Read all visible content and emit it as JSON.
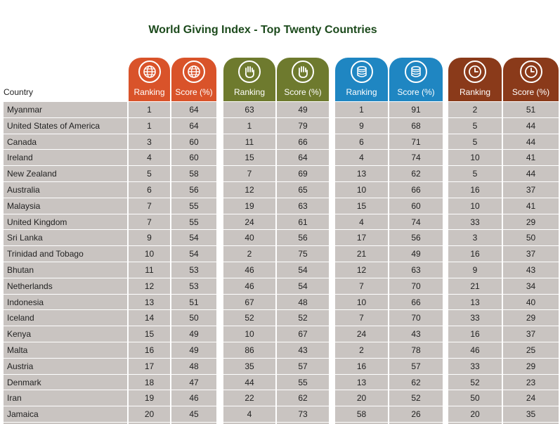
{
  "title": "World Giving Index - Top Twenty Countries",
  "country_header": "Country",
  "groups": [
    {
      "name": "helping-stranger",
      "icon": "globe-icon",
      "color": "#d9532a",
      "ranking_label": "Ranking",
      "score_label": "Score (%)"
    },
    {
      "name": "donating-money",
      "icon": "hand-icon",
      "color": "#6e7a2e",
      "ranking_label": "Ranking",
      "score_label": "Score (%)"
    },
    {
      "name": "volunteering",
      "icon": "coins-icon",
      "color": "#1f86c2",
      "ranking_label": "Ranking",
      "score_label": "Score (%)"
    },
    {
      "name": "time",
      "icon": "clock-icon",
      "color": "#8a3a1a",
      "ranking_label": "Ranking",
      "score_label": "Score (%)"
    }
  ],
  "rows": [
    {
      "country": "Myanmar",
      "v": [
        "1",
        "64",
        "63",
        "49",
        "1",
        "91",
        "2",
        "51"
      ]
    },
    {
      "country": "United States of America",
      "v": [
        "1",
        "64",
        "1",
        "79",
        "9",
        "68",
        "5",
        "44"
      ]
    },
    {
      "country": "Canada",
      "v": [
        "3",
        "60",
        "11",
        "66",
        "6",
        "71",
        "5",
        "44"
      ]
    },
    {
      "country": "Ireland",
      "v": [
        "4",
        "60",
        "15",
        "64",
        "4",
        "74",
        "10",
        "41"
      ]
    },
    {
      "country": "New Zealand",
      "v": [
        "5",
        "58",
        "7",
        "69",
        "13",
        "62",
        "5",
        "44"
      ]
    },
    {
      "country": "Australia",
      "v": [
        "6",
        "56",
        "12",
        "65",
        "10",
        "66",
        "16",
        "37"
      ]
    },
    {
      "country": "Malaysia",
      "v": [
        "7",
        "55",
        "19",
        "63",
        "15",
        "60",
        "10",
        "41"
      ]
    },
    {
      "country": "United Kingdom",
      "v": [
        "7",
        "55",
        "24",
        "61",
        "4",
        "74",
        "33",
        "29"
      ]
    },
    {
      "country": "Sri Lanka",
      "v": [
        "9",
        "54",
        "40",
        "56",
        "17",
        "56",
        "3",
        "50"
      ]
    },
    {
      "country": "Trinidad and Tobago",
      "v": [
        "10",
        "54",
        "2",
        "75",
        "21",
        "49",
        "16",
        "37"
      ]
    },
    {
      "country": "Bhutan",
      "v": [
        "11",
        "53",
        "46",
        "54",
        "12",
        "63",
        "9",
        "43"
      ]
    },
    {
      "country": "Netherlands",
      "v": [
        "12",
        "53",
        "46",
        "54",
        "7",
        "70",
        "21",
        "34"
      ]
    },
    {
      "country": "Indonesia",
      "v": [
        "13",
        "51",
        "67",
        "48",
        "10",
        "66",
        "13",
        "40"
      ]
    },
    {
      "country": "Iceland",
      "v": [
        "14",
        "50",
        "52",
        "52",
        "7",
        "70",
        "33",
        "29"
      ]
    },
    {
      "country": "Kenya",
      "v": [
        "15",
        "49",
        "10",
        "67",
        "24",
        "43",
        "16",
        "37"
      ]
    },
    {
      "country": "Malta",
      "v": [
        "16",
        "49",
        "86",
        "43",
        "2",
        "78",
        "46",
        "25"
      ]
    },
    {
      "country": "Austria",
      "v": [
        "17",
        "48",
        "35",
        "57",
        "16",
        "57",
        "33",
        "29"
      ]
    },
    {
      "country": "Denmark",
      "v": [
        "18",
        "47",
        "44",
        "55",
        "13",
        "62",
        "52",
        "23"
      ]
    },
    {
      "country": "Iran",
      "v": [
        "19",
        "46",
        "22",
        "62",
        "20",
        "52",
        "50",
        "24"
      ]
    },
    {
      "country": "Jamaica",
      "v": [
        "20",
        "45",
        "4",
        "73",
        "58",
        "26",
        "20",
        "35"
      ]
    }
  ]
}
